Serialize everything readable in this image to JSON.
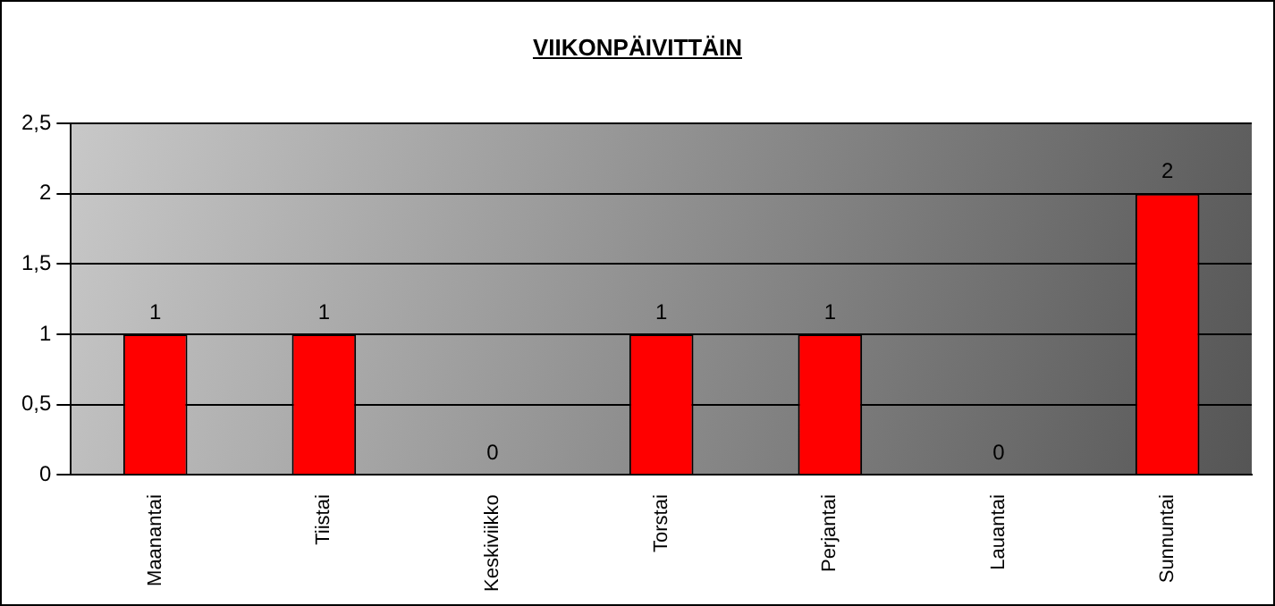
{
  "chart_data": {
    "type": "bar",
    "title": "VIIKONPÄIVITTÄIN",
    "categories": [
      "Maanantai",
      "Tiistai",
      "Keskiviikko",
      "Torstai",
      "Perjantai",
      "Lauantai",
      "Sunnuntai"
    ],
    "values": [
      1,
      1,
      0,
      1,
      1,
      0,
      2
    ],
    "color": "#ff0000",
    "ylim": [
      0,
      2.5
    ],
    "yticks": [
      0,
      {
        "value": 0.5,
        "label": "0,5"
      },
      1,
      {
        "value": 1.5,
        "label": "1,5"
      },
      2,
      {
        "value": 2.5,
        "label": "2,5"
      }
    ],
    "grid": "y",
    "legend": false,
    "data_labels": true
  }
}
